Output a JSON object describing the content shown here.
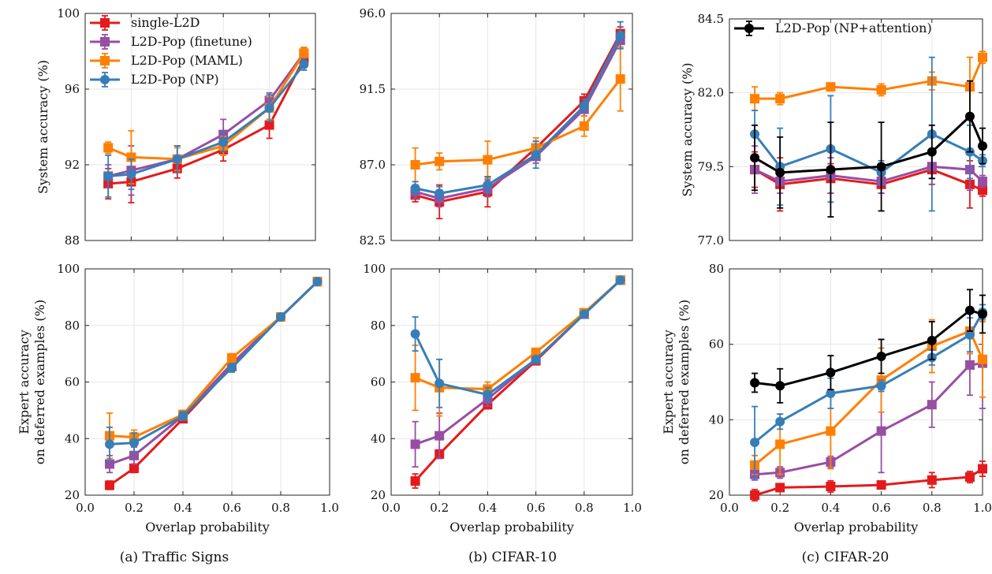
{
  "colors": {
    "single-L2D": "#e41a1c",
    "L2D-Pop (finetune)": "#984ea3",
    "L2D-Pop (MAML)": "#ff7f00",
    "L2D-Pop (NP)": "#377eb8",
    "L2D-Pop (NP+attention)": "#000000"
  },
  "chart_data": [
    {
      "id": "p00",
      "type": "line",
      "ylabel": "System accuracy (%)",
      "xlabel": "",
      "xlim": [
        0,
        1
      ],
      "ylim": [
        88,
        100
      ],
      "xticks": [
        0.0,
        0.2,
        0.4,
        0.6,
        0.8,
        1.0
      ],
      "yticks": [
        88,
        92,
        96,
        100
      ],
      "xtick_labels": [],
      "ytick_labels": [
        "88",
        "92",
        "96",
        "100"
      ],
      "legend": [
        "single-L2D",
        "L2D-Pop (finetune)",
        "L2D-Pop (MAML)",
        "L2D-Pop (NP)"
      ],
      "legend_position": "top-left",
      "series": [
        {
          "name": "single-L2D",
          "marker": "square",
          "x": [
            0.1,
            0.2,
            0.4,
            0.6,
            0.8,
            0.95
          ],
          "y": [
            91.0,
            91.1,
            91.8,
            92.8,
            94.1,
            97.6
          ],
          "err": [
            0.8,
            1.1,
            0.5,
            0.6,
            0.7,
            0.3
          ]
        },
        {
          "name": "L2D-Pop (finetune)",
          "marker": "square",
          "x": [
            0.1,
            0.2,
            0.4,
            0.6,
            0.8,
            0.95
          ],
          "y": [
            91.4,
            91.7,
            92.3,
            93.6,
            95.4,
            97.9
          ],
          "err": [
            0.6,
            1.3,
            0.7,
            0.8,
            0.4,
            0.3
          ]
        },
        {
          "name": "L2D-Pop (MAML)",
          "marker": "square",
          "x": [
            0.1,
            0.2,
            0.4,
            0.6,
            0.8,
            0.95
          ],
          "y": [
            92.9,
            92.4,
            92.3,
            93.0,
            95.0,
            97.9
          ],
          "err": [
            0.3,
            1.4,
            0.6,
            0.5,
            0.6,
            0.3
          ]
        },
        {
          "name": "L2D-Pop (NP)",
          "marker": "circle",
          "x": [
            0.1,
            0.2,
            0.4,
            0.6,
            0.8,
            0.95
          ],
          "y": [
            91.4,
            91.5,
            92.3,
            93.2,
            95.0,
            97.3
          ],
          "err": [
            1.1,
            0.8,
            0.7,
            0.5,
            0.7,
            0.3
          ]
        }
      ]
    },
    {
      "id": "p01",
      "type": "line",
      "ylabel": "",
      "xlabel": "",
      "xlim": [
        0,
        1
      ],
      "ylim": [
        82.5,
        96.0
      ],
      "xticks": [
        0.0,
        0.2,
        0.4,
        0.6,
        0.8,
        1.0
      ],
      "yticks": [
        82.5,
        87.0,
        91.5,
        96.0
      ],
      "xtick_labels": [],
      "ytick_labels": [
        "82.5",
        "87.0",
        "91.5",
        "96.0"
      ],
      "series": [
        {
          "name": "single-L2D",
          "marker": "square",
          "x": [
            0.1,
            0.2,
            0.4,
            0.6,
            0.8,
            0.95
          ],
          "y": [
            85.2,
            84.8,
            85.4,
            88.0,
            90.8,
            94.8
          ],
          "err": [
            0.4,
            1.0,
            0.9,
            0.4,
            0.4,
            0.4
          ]
        },
        {
          "name": "L2D-Pop (finetune)",
          "marker": "square",
          "x": [
            0.1,
            0.2,
            0.4,
            0.6,
            0.8,
            0.95
          ],
          "y": [
            85.4,
            85.0,
            85.6,
            87.5,
            90.3,
            94.4
          ],
          "err": [
            0.4,
            0.5,
            0.5,
            0.4,
            0.4,
            0.4
          ]
        },
        {
          "name": "L2D-Pop (MAML)",
          "marker": "square",
          "x": [
            0.1,
            0.2,
            0.4,
            0.6,
            0.8,
            0.95
          ],
          "y": [
            87.0,
            87.2,
            87.3,
            88.0,
            89.3,
            92.1
          ],
          "err": [
            1.0,
            0.5,
            1.1,
            0.6,
            0.6,
            1.9
          ]
        },
        {
          "name": "L2D-Pop (NP)",
          "marker": "circle",
          "x": [
            0.1,
            0.2,
            0.4,
            0.6,
            0.8,
            0.95
          ],
          "y": [
            85.6,
            85.3,
            85.8,
            87.6,
            90.5,
            94.7
          ],
          "err": [
            0.4,
            0.4,
            0.5,
            0.8,
            0.4,
            0.8
          ]
        }
      ]
    },
    {
      "id": "p02",
      "type": "line",
      "ylabel": "System accuracy (%)",
      "xlabel": "",
      "xlim": [
        0,
        1
      ],
      "ylim": [
        77.0,
        84.5
      ],
      "xticks": [
        0.0,
        0.2,
        0.4,
        0.6,
        0.8,
        1.0
      ],
      "yticks": [
        77.0,
        79.5,
        82.0,
        84.5
      ],
      "xtick_labels": [],
      "ytick_labels": [
        "77.0",
        "79.5",
        "82.0",
        "84.5"
      ],
      "legend": [
        "L2D-Pop (NP+attention)"
      ],
      "legend_position": "top-left",
      "series": [
        {
          "name": "single-L2D",
          "marker": "square",
          "x": [
            0.1,
            0.2,
            0.4,
            0.6,
            0.8,
            0.95,
            1.0
          ],
          "y": [
            79.4,
            78.9,
            79.1,
            78.9,
            79.4,
            78.9,
            78.7
          ],
          "err": [
            0.6,
            0.9,
            0.5,
            0.3,
            0.5,
            0.8,
            0.2
          ]
        },
        {
          "name": "L2D-Pop (finetune)",
          "marker": "square",
          "x": [
            0.1,
            0.2,
            0.4,
            0.6,
            0.8,
            0.95,
            1.0
          ],
          "y": [
            79.4,
            79.0,
            79.2,
            79.0,
            79.5,
            79.4,
            79.0
          ],
          "err": [
            0.8,
            0.4,
            0.6,
            0.4,
            0.4,
            0.7,
            0.2
          ]
        },
        {
          "name": "L2D-Pop (MAML)",
          "marker": "square",
          "x": [
            0.1,
            0.2,
            0.4,
            0.6,
            0.8,
            0.95,
            1.0
          ],
          "y": [
            81.8,
            81.8,
            82.2,
            82.1,
            82.4,
            82.2,
            83.2
          ],
          "err": [
            0.4,
            0.2,
            0.1,
            0.2,
            0.3,
            1.0,
            0.2
          ]
        },
        {
          "name": "L2D-Pop (NP)",
          "marker": "circle",
          "x": [
            0.1,
            0.2,
            0.4,
            0.6,
            0.8,
            0.95,
            1.0
          ],
          "y": [
            80.6,
            79.5,
            80.1,
            79.3,
            80.6,
            80.0,
            79.7
          ],
          "err": [
            0.8,
            1.3,
            1.8,
            0.4,
            2.6,
            0.9,
            0.2
          ]
        },
        {
          "name": "L2D-Pop (NP+attention)",
          "marker": "circle",
          "x": [
            0.1,
            0.2,
            0.4,
            0.6,
            0.8,
            0.95,
            1.0
          ],
          "y": [
            79.8,
            79.3,
            79.4,
            79.5,
            80.0,
            81.2,
            80.2
          ],
          "err": [
            1.1,
            1.2,
            1.6,
            1.5,
            0.9,
            1.2,
            0.6
          ]
        }
      ]
    },
    {
      "id": "p10",
      "type": "line",
      "ylabel": "Expert accuracy on deferred examples (%)",
      "xlabel": "Overlap probability",
      "xlim": [
        0,
        1
      ],
      "ylim": [
        20,
        100
      ],
      "xticks": [
        0.0,
        0.2,
        0.4,
        0.6,
        0.8,
        1.0
      ],
      "yticks": [
        20,
        40,
        60,
        80,
        100
      ],
      "xtick_labels": [
        "0.0",
        "0.2",
        "0.4",
        "0.6",
        "0.8",
        "1.0"
      ],
      "ytick_labels": [
        "20",
        "40",
        "60",
        "80",
        "100"
      ],
      "series": [
        {
          "name": "single-L2D",
          "marker": "square",
          "x": [
            0.1,
            0.2,
            0.4,
            0.6,
            0.8,
            0.95
          ],
          "y": [
            23.5,
            29.5,
            47.0,
            65.5,
            83.0,
            95.5
          ],
          "err": [
            1.5,
            1.5,
            1.2,
            1.2,
            0.8,
            0.5
          ]
        },
        {
          "name": "L2D-Pop (finetune)",
          "marker": "square",
          "x": [
            0.1,
            0.2,
            0.4,
            0.6,
            0.8,
            0.95
          ],
          "y": [
            31.0,
            34.0,
            48.0,
            66.5,
            83.0,
            95.5
          ],
          "err": [
            3.0,
            3.0,
            1.5,
            1.5,
            0.8,
            0.5
          ]
        },
        {
          "name": "L2D-Pop (MAML)",
          "marker": "square",
          "x": [
            0.1,
            0.2,
            0.4,
            0.6,
            0.8,
            0.95
          ],
          "y": [
            41.0,
            40.5,
            48.5,
            68.5,
            83.0,
            95.5
          ],
          "err": [
            8.0,
            2.5,
            1.5,
            1.5,
            0.8,
            0.5
          ]
        },
        {
          "name": "L2D-Pop (NP)",
          "marker": "circle",
          "x": [
            0.1,
            0.2,
            0.4,
            0.6,
            0.8,
            0.95
          ],
          "y": [
            38.0,
            38.5,
            48.0,
            65.0,
            83.0,
            95.5
          ],
          "err": [
            6.0,
            3.5,
            1.5,
            1.5,
            0.8,
            0.5
          ]
        }
      ]
    },
    {
      "id": "p11",
      "type": "line",
      "ylabel": "",
      "xlabel": "Overlap probability",
      "xlim": [
        0,
        1
      ],
      "ylim": [
        20,
        100
      ],
      "xticks": [
        0.0,
        0.2,
        0.4,
        0.6,
        0.8,
        1.0
      ],
      "yticks": [
        20,
        40,
        60,
        80,
        100
      ],
      "xtick_labels": [
        "0.0",
        "0.2",
        "0.4",
        "0.6",
        "0.8",
        "1.0"
      ],
      "ytick_labels": [
        "20",
        "40",
        "60",
        "80",
        "100"
      ],
      "series": [
        {
          "name": "single-L2D",
          "marker": "square",
          "x": [
            0.1,
            0.2,
            0.4,
            0.6,
            0.8,
            0.95
          ],
          "y": [
            25.0,
            34.5,
            52.0,
            67.5,
            84.0,
            96.0
          ],
          "err": [
            2.5,
            1.5,
            1.5,
            1.2,
            0.8,
            0.5
          ]
        },
        {
          "name": "L2D-Pop (finetune)",
          "marker": "square",
          "x": [
            0.1,
            0.2,
            0.4,
            0.6,
            0.8,
            0.95
          ],
          "y": [
            38.0,
            41.0,
            54.0,
            68.0,
            84.0,
            96.0
          ],
          "err": [
            8.0,
            8.0,
            2.5,
            1.2,
            0.8,
            0.5
          ]
        },
        {
          "name": "L2D-Pop (MAML)",
          "marker": "square",
          "x": [
            0.1,
            0.2,
            0.4,
            0.6,
            0.8,
            0.95
          ],
          "y": [
            61.5,
            58.0,
            57.5,
            70.5,
            84.5,
            96.0
          ],
          "err": [
            11.5,
            10.0,
            2.5,
            1.2,
            0.8,
            0.5
          ]
        },
        {
          "name": "L2D-Pop (NP)",
          "marker": "circle",
          "x": [
            0.1,
            0.2,
            0.4,
            0.6,
            0.8,
            0.95
          ],
          "y": [
            77.0,
            59.5,
            55.5,
            68.0,
            84.0,
            96.0
          ],
          "err": [
            6.0,
            8.5,
            2.5,
            1.2,
            0.8,
            0.5
          ]
        }
      ]
    },
    {
      "id": "p12",
      "type": "line",
      "ylabel": "Expert accuracy on deferred examples (%)",
      "xlabel": "Overlap probability",
      "xlim": [
        0,
        1
      ],
      "ylim": [
        20,
        80
      ],
      "xticks": [
        0.0,
        0.2,
        0.4,
        0.6,
        0.8,
        1.0
      ],
      "yticks": [
        20,
        40,
        60,
        80
      ],
      "xtick_labels": [
        "0.0",
        "0.2",
        "0.4",
        "0.6",
        "0.8",
        "1.0"
      ],
      "ytick_labels": [
        "20",
        "40",
        "60",
        "80"
      ],
      "series": [
        {
          "name": "single-L2D",
          "marker": "square",
          "x": [
            0.1,
            0.2,
            0.4,
            0.6,
            0.8,
            0.95,
            1.0
          ],
          "y": [
            20.0,
            22.0,
            22.3,
            22.7,
            24.0,
            24.8,
            27.0
          ],
          "err": [
            1.5,
            1.0,
            1.5,
            1.0,
            2.0,
            1.5,
            2.0
          ]
        },
        {
          "name": "L2D-Pop (finetune)",
          "marker": "square",
          "x": [
            0.1,
            0.2,
            0.4,
            0.6,
            0.8,
            0.95,
            1.0
          ],
          "y": [
            25.5,
            26.0,
            28.8,
            37.0,
            44.0,
            54.5,
            55.0
          ],
          "err": [
            1.5,
            1.5,
            1.5,
            11.0,
            6.0,
            8.0,
            12.0
          ]
        },
        {
          "name": "L2D-Pop (MAML)",
          "marker": "square",
          "x": [
            0.1,
            0.2,
            0.4,
            0.6,
            0.8,
            0.95,
            1.0
          ],
          "y": [
            28.0,
            33.5,
            37.0,
            50.5,
            59.5,
            63.5,
            56.0
          ],
          "err": [
            2.5,
            8.0,
            10.0,
            8.5,
            7.0,
            6.0,
            10.0
          ]
        },
        {
          "name": "L2D-Pop (NP)",
          "marker": "circle",
          "x": [
            0.1,
            0.2,
            0.4,
            0.6,
            0.8,
            0.95,
            1.0
          ],
          "y": [
            34.0,
            39.5,
            47.0,
            49.0,
            56.5,
            62.5,
            68.5
          ],
          "err": [
            9.5,
            2.0,
            4.0,
            1.5,
            2.0,
            4.5,
            2.0
          ]
        },
        {
          "name": "L2D-Pop (NP+attention)",
          "marker": "circle",
          "x": [
            0.1,
            0.2,
            0.4,
            0.6,
            0.8,
            0.95,
            1.0
          ],
          "y": [
            49.8,
            49.0,
            52.5,
            56.8,
            61.0,
            69.0,
            68.0
          ],
          "err": [
            2.5,
            4.5,
            4.5,
            4.5,
            5.0,
            5.5,
            5.0
          ]
        }
      ]
    }
  ],
  "captions": [
    "(a) Traffic Signs",
    "(b) CIFAR-10",
    "(c) CIFAR-20"
  ]
}
